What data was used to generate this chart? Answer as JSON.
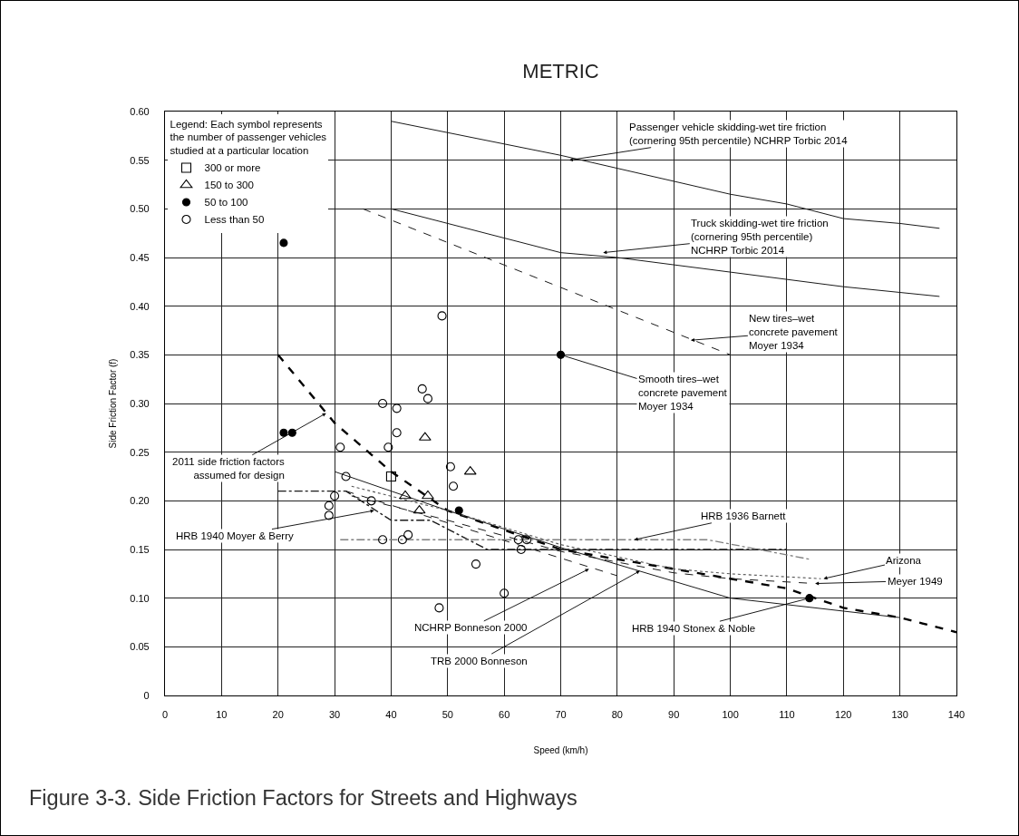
{
  "chart_data": {
    "type": "line",
    "title": "METRIC",
    "xlabel": "Speed (km/h)",
    "ylabel": "Side Friction Factor (f)",
    "legend_title": "Legend: Each symbol represents the number of passenger vehicles studied at a particular location",
    "xlim": [
      0,
      140
    ],
    "xticks": [
      0,
      10,
      20,
      30,
      40,
      50,
      60,
      70,
      80,
      90,
      100,
      110,
      120,
      130,
      140
    ],
    "ylim": [
      0,
      0.6
    ],
    "yticks": [
      0,
      0.05,
      {
        "value": 0.1,
        "label": "0.10"
      },
      0.15,
      {
        "value": 0.2,
        "label": "0.20"
      },
      0.25,
      {
        "value": 0.3,
        "label": "0.30"
      },
      0.35,
      {
        "value": 0.4,
        "label": "0.40"
      },
      0.45,
      {
        "value": 0.5,
        "label": "0.50"
      },
      0.55,
      {
        "value": 0.6,
        "label": "0.60"
      }
    ],
    "grid": true,
    "legend": "top left",
    "series": [
      {
        "color": "#1a1a1a",
        "line_style": "solid",
        "x": [
          40,
          70,
          100,
          110,
          120,
          130,
          137
        ],
        "values": [
          0.59,
          0.555,
          0.515,
          0.505,
          0.49,
          0.485,
          0.48
        ]
      },
      {
        "color": "#1a1a1a",
        "line_style": "solid",
        "x": [
          40,
          70,
          80,
          100,
          120,
          137
        ],
        "values": [
          0.5,
          0.455,
          0.45,
          0.435,
          0.42,
          0.41
        ]
      },
      {
        "color": "#1a1a1a",
        "line_style": "dashed",
        "x": [
          35,
          100
        ],
        "values": [
          0.5,
          0.35
        ]
      },
      {
        "color": "#000000",
        "line_style": "dashed",
        "x": [
          20,
          30,
          40,
          50,
          60,
          70,
          80,
          90,
          100,
          110,
          120,
          130,
          140
        ],
        "values": [
          0.35,
          0.28,
          0.23,
          0.19,
          0.17,
          0.15,
          0.14,
          0.13,
          0.12,
          0.11,
          0.09,
          0.08,
          0.065
        ]
      },
      {
        "color": "#1a1a1a",
        "line_style": "dashdot",
        "x": [
          20,
          32,
          40,
          47,
          57,
          110
        ],
        "values": [
          0.21,
          0.21,
          0.18,
          0.18,
          0.15,
          0.15
        ]
      },
      {
        "color": "#808080",
        "line_style": "dashdot",
        "x": [
          31,
          96,
          114
        ],
        "values": [
          0.16,
          0.16,
          0.14
        ]
      },
      {
        "color": "#1a1a1a",
        "line_style": "solid",
        "x": [
          30,
          50,
          70,
          100,
          130
        ],
        "values": [
          0.23,
          0.19,
          0.152,
          0.1,
          0.08
        ]
      },
      {
        "color": "#1a1a1a",
        "line_style": "dashed",
        "x": [
          32,
          80
        ],
        "values": [
          0.21,
          0.123
        ]
      },
      {
        "color": "#555555",
        "line_style": "dotted",
        "x": [
          33,
          50,
          70,
          90,
          100,
          116
        ],
        "values": [
          0.215,
          0.19,
          0.155,
          0.13,
          0.125,
          0.12
        ]
      },
      {
        "color": "#1a1a1a",
        "line_style": "dashed",
        "x": [
          33,
          50,
          70,
          90,
          100,
          115
        ],
        "values": [
          0.205,
          0.18,
          0.148,
          0.126,
          0.12,
          0.115
        ]
      },
      {
        "type": "scatter",
        "name": "300 or more",
        "color": "#000000",
        "marker": "square-open",
        "x": [
          40
        ],
        "values": [
          0.225
        ]
      },
      {
        "type": "scatter",
        "name": "150 to 300",
        "color": "#000000",
        "marker": "triangle-open",
        "x": [
          46,
          54,
          42.5,
          46.5,
          45
        ],
        "values": [
          0.265,
          0.23,
          0.205,
          0.205,
          0.19
        ]
      },
      {
        "type": "scatter",
        "name": "50 to 100",
        "color": "#000000",
        "marker": "circle",
        "x": [
          21,
          21,
          22.5,
          52,
          70,
          114
        ],
        "values": [
          0.465,
          0.27,
          0.27,
          0.19,
          0.35,
          0.1
        ]
      },
      {
        "type": "scatter",
        "name": "Less than 50",
        "color": "#000000",
        "marker": "circle-open",
        "x": [
          49,
          45.5,
          46.5,
          38.5,
          41,
          41,
          39.5,
          50.5,
          51,
          36.5,
          38.5,
          42,
          43,
          62.5,
          64,
          63,
          55,
          60,
          48.5,
          31,
          32,
          30,
          29,
          29
        ],
        "values": [
          0.39,
          0.315,
          0.305,
          0.3,
          0.295,
          0.27,
          0.255,
          0.235,
          0.215,
          0.2,
          0.16,
          0.16,
          0.165,
          0.16,
          0.16,
          0.15,
          0.135,
          0.105,
          0.09,
          0.255,
          0.225,
          0.205,
          0.195,
          0.185
        ]
      }
    ],
    "annotations": [
      {
        "text": "Passenger vehicle skidding-wet tire friction (cornering 95th percentile) NCHRP Torbic 2014",
        "x": 71.5,
        "y": 0.55
      },
      {
        "text": "Truck skidding-wet tire friction (cornering 95th percentile) NCHRP Torbic 2014",
        "x": 77.5,
        "y": 0.455
      },
      {
        "text": "New tires–wet concrete pavement Moyer 1934",
        "x": 93,
        "y": 0.365
      },
      {
        "text": "Smooth tires–wet concrete pavement Moyer 1934",
        "x": 70,
        "y": 0.35
      },
      {
        "text": "2011 side friction factors assumed for design",
        "x": 28.5,
        "y": 0.29
      },
      {
        "text": "HRB 1940 Moyer & Berry",
        "x": 37,
        "y": 0.19
      },
      {
        "text": "HRB 1936 Barnett",
        "x": 83,
        "y": 0.16
      },
      {
        "text": "Arizona",
        "x": 116.5,
        "y": 0.12
      },
      {
        "text": "Meyer 1949",
        "x": 115,
        "y": 0.115
      },
      {
        "text": "HRB 1940 Stonex & Noble",
        "x": 114,
        "y": 0.1
      },
      {
        "text": "NCHRP Bonneson 2000",
        "x": 75,
        "y": 0.13
      },
      {
        "text": "TRB 2000 Bonneson",
        "x": 84,
        "y": 0.128
      },
      "Figure 3-3. Side Friction Factors for Streets and Highways"
    ]
  }
}
